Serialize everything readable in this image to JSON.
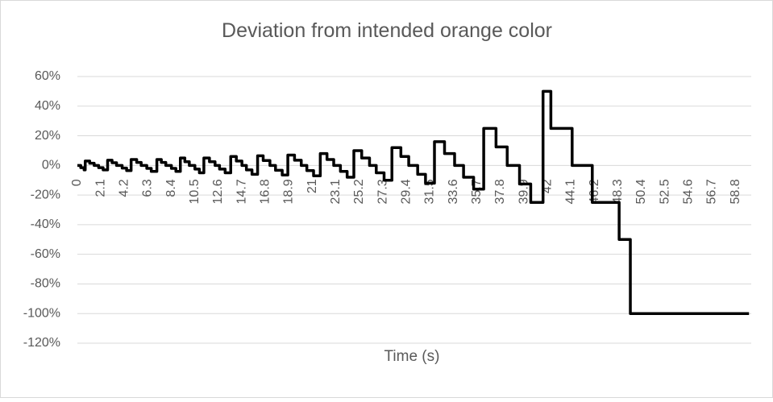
{
  "chart_data": {
    "type": "line",
    "title": "Deviation from intended orange color",
    "x_label": "Time (s)",
    "x": [
      0,
      0.3,
      0.3,
      0.6,
      0.6,
      0.7,
      0.7,
      1.1,
      1.1,
      1.5,
      1.5,
      1.9,
      1.9,
      2.3,
      2.3,
      2.7,
      2.7,
      3.1,
      3.1,
      3.5,
      3.5,
      4.0,
      4.0,
      4.4,
      4.4,
      4.8,
      4.8,
      5.3,
      5.3,
      5.7,
      5.7,
      6.2,
      6.2,
      6.6,
      6.6,
      7.1,
      7.1,
      7.5,
      7.5,
      7.9,
      7.9,
      8.4,
      8.4,
      8.8,
      8.8,
      9.2,
      9.2,
      9.6,
      9.6,
      10.0,
      10.0,
      10.5,
      10.5,
      10.9,
      10.9,
      11.3,
      11.3,
      11.8,
      11.8,
      12.3,
      12.3,
      12.7,
      12.7,
      13.2,
      13.2,
      13.7,
      13.7,
      14.2,
      14.2,
      14.7,
      14.7,
      15.1,
      15.1,
      15.6,
      15.6,
      16.1,
      16.1,
      16.6,
      16.6,
      17.2,
      17.2,
      17.7,
      17.7,
      18.3,
      18.3,
      18.8,
      18.8,
      19.4,
      19.4,
      20.0,
      20.0,
      20.5,
      20.5,
      21.1,
      21.1,
      21.7,
      21.7,
      22.3,
      22.3,
      22.9,
      22.9,
      23.5,
      23.5,
      24.1,
      24.1,
      24.7,
      24.7,
      25.4,
      25.4,
      26.1,
      26.1,
      26.7,
      26.7,
      27.4,
      27.4,
      28.1,
      28.1,
      28.9,
      28.9,
      29.6,
      29.6,
      30.4,
      30.4,
      31.1,
      31.1,
      31.9,
      31.9,
      32.8,
      32.8,
      33.7,
      33.7,
      34.5,
      34.5,
      35.4,
      35.4,
      36.3,
      36.3,
      37.4,
      37.4,
      38.4,
      38.4,
      39.5,
      39.5,
      40.5,
      40.5,
      41.6,
      41.6,
      42.3,
      42.3,
      44.2,
      44.2,
      46.0,
      46.0,
      48.4,
      48.4,
      49.4,
      49.4,
      60
    ],
    "values": [
      0,
      0,
      -1.5,
      -1.5,
      -3,
      -3,
      3,
      3,
      1.5,
      1.5,
      0,
      0,
      -1.5,
      -1.5,
      -3,
      -3,
      3.5,
      3.5,
      1.8,
      1.8,
      0,
      0,
      -1.8,
      -1.8,
      -3.5,
      -3.5,
      4,
      4,
      2,
      2,
      0,
      0,
      -2,
      -2,
      -4,
      -4,
      4,
      4,
      2,
      2,
      0,
      0,
      -2,
      -2,
      -4,
      -4,
      5,
      5,
      2.5,
      2.5,
      0,
      0,
      -2.5,
      -2.5,
      -5,
      -5,
      5,
      5,
      2.5,
      2.5,
      0,
      0,
      -2.5,
      -2.5,
      -5,
      -5,
      6,
      6,
      3,
      3,
      0,
      0,
      -3,
      -3,
      -6,
      -6,
      6.5,
      6.5,
      3.3,
      3.3,
      0,
      0,
      -3.3,
      -3.3,
      -6.5,
      -6.5,
      7,
      7,
      3.5,
      3.5,
      0,
      0,
      -3.5,
      -3.5,
      -7,
      -7,
      8,
      8,
      4,
      4,
      0,
      0,
      -4,
      -4,
      -8,
      -8,
      10,
      10,
      5,
      5,
      0,
      0,
      -5,
      -5,
      -10,
      -10,
      12,
      12,
      6,
      6,
      0,
      0,
      -6,
      -6,
      -12,
      -12,
      16,
      16,
      8,
      8,
      0,
      0,
      -8,
      -8,
      -16,
      -16,
      25,
      25,
      12.5,
      12.5,
      0,
      0,
      -12.5,
      -12.5,
      -25,
      -25,
      50,
      50,
      25,
      25,
      0,
      0,
      -25,
      -25,
      -50,
      -50,
      -100,
      -100
    ],
    "color": "#000000",
    "xlim": [
      0,
      60.2
    ],
    "xticks": [
      0,
      2.1,
      4.2,
      6.3,
      8.4,
      10.5,
      12.6,
      14.7,
      16.8,
      18.9,
      21,
      23.1,
      25.2,
      27.3,
      29.4,
      31.5,
      33.6,
      35.7,
      37.8,
      39.9,
      42,
      44.1,
      46.2,
      48.3,
      50.4,
      52.5,
      54.6,
      56.7,
      58.8
    ],
    "ylim": [
      -120,
      60
    ],
    "yticks": [
      {
        "value": -120,
        "label": "-120%"
      },
      {
        "value": -100,
        "label": "-100%"
      },
      {
        "value": -80,
        "label": "-80%"
      },
      {
        "value": -60,
        "label": "-60%"
      },
      {
        "value": -40,
        "label": "-40%"
      },
      {
        "value": -20,
        "label": "-20%"
      },
      {
        "value": 0,
        "label": "0%"
      },
      {
        "value": 20,
        "label": "20%"
      },
      {
        "value": 40,
        "label": "40%"
      },
      {
        "value": 60,
        "label": "60%"
      }
    ],
    "grid": true
  }
}
